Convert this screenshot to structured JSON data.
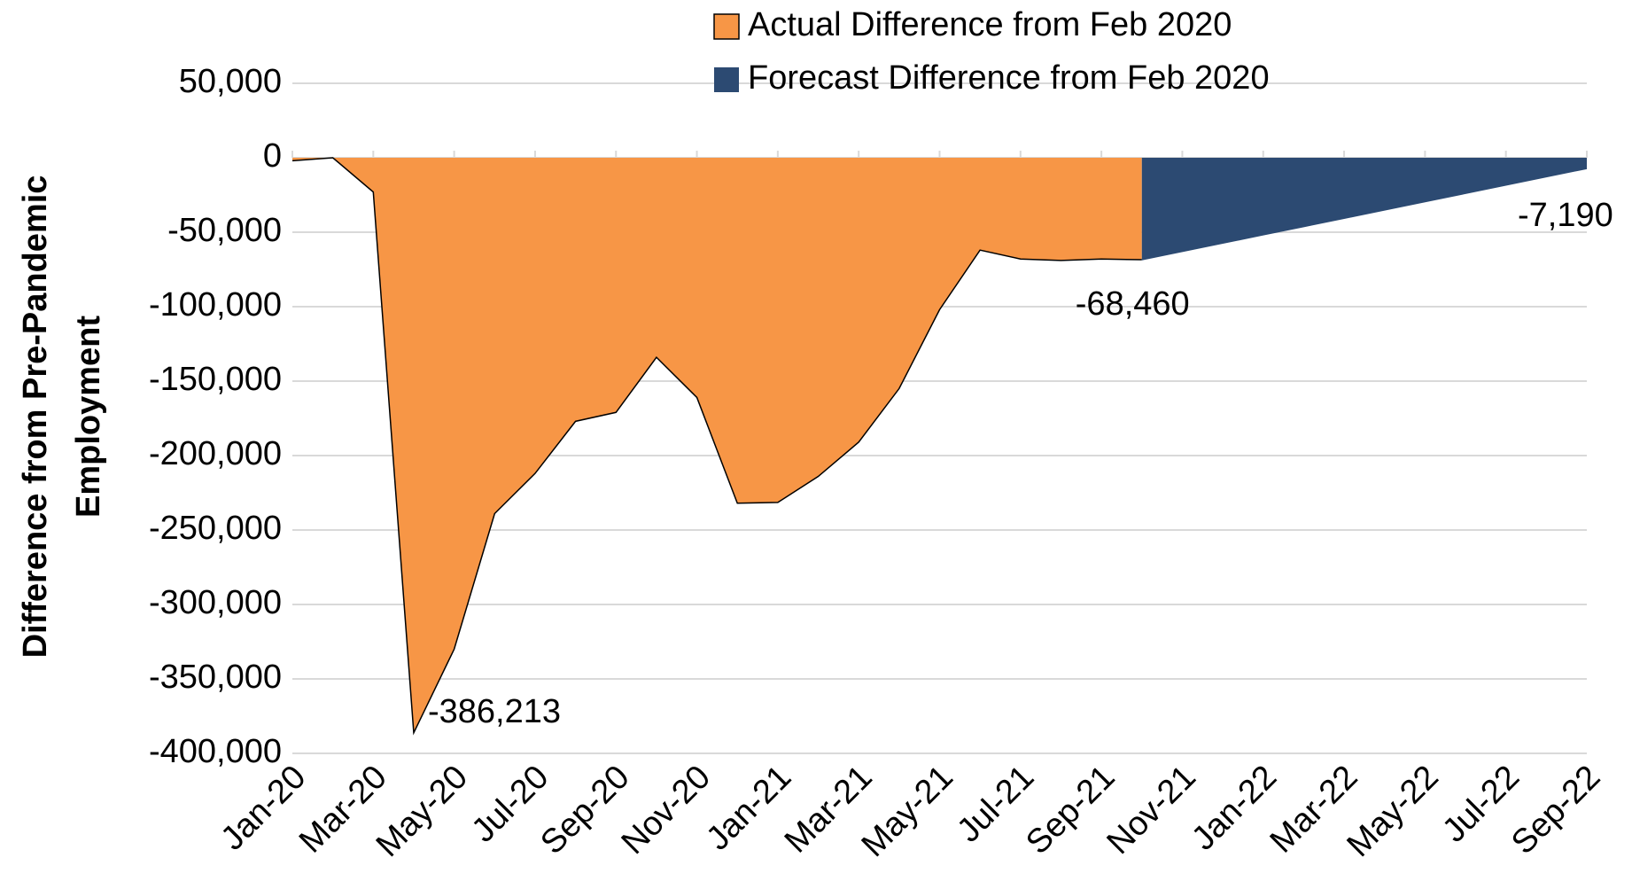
{
  "chart_data": {
    "type": "area",
    "y_label": [
      "Difference from Pre-Pandemic",
      "Employment"
    ],
    "categories": [
      "Jan-20",
      null,
      "Mar-20",
      null,
      "May-20",
      null,
      "Jul-20",
      null,
      "Sep-20",
      null,
      "Nov-20",
      null,
      "Jan-21",
      null,
      "Mar-21",
      null,
      "May-21",
      null,
      "Jul-21",
      null,
      "Sep-21",
      null,
      "Nov-21",
      null,
      "Jan-22",
      null,
      "Mar-22",
      null,
      "May-22",
      null,
      "Jul-22",
      null,
      "Sep-22"
    ],
    "series": [
      {
        "name": "Actual Difference from Feb 2020",
        "color": "#f79646",
        "values": [
          -2000,
          0,
          -23000,
          -386213,
          -330000,
          -239000,
          -212000,
          -177000,
          -171000,
          -134000,
          -161000,
          -232000,
          -231500,
          -214000,
          -191000,
          -155000,
          -102000,
          -62000,
          -68000,
          -69000,
          -68000,
          -68460,
          null,
          null,
          null,
          null,
          null,
          null,
          null,
          null,
          null,
          null,
          null
        ],
        "value_labels": [
          null,
          null,
          null,
          "-386,213",
          null,
          null,
          null,
          null,
          null,
          null,
          null,
          null,
          null,
          null,
          null,
          null,
          null,
          null,
          null,
          null,
          null,
          null,
          null,
          null,
          null,
          null,
          null,
          null,
          null,
          null,
          null,
          null,
          null
        ]
      },
      {
        "name": "Forecast Difference from Feb 2020",
        "color": "#2c4a72",
        "values": [
          null,
          null,
          null,
          null,
          null,
          null,
          null,
          null,
          null,
          null,
          null,
          null,
          null,
          null,
          null,
          null,
          null,
          null,
          null,
          null,
          null,
          -68460,
          -62890,
          -57320,
          -51750,
          -46180,
          -40610,
          -35040,
          -29470,
          -23900,
          -18330,
          -12760,
          -7190
        ],
        "value_labels": [
          null,
          null,
          null,
          null,
          null,
          null,
          null,
          null,
          null,
          null,
          null,
          null,
          null,
          null,
          null,
          null,
          null,
          null,
          null,
          null,
          null,
          "-68,460",
          null,
          null,
          null,
          null,
          null,
          null,
          null,
          null,
          null,
          null,
          "-7,190"
        ]
      }
    ],
    "ylim": [
      -400000,
      50000
    ],
    "yticks": [
      {
        "value": 50000,
        "label": "50,000"
      },
      0,
      {
        "value": -50000,
        "label": "-50,000"
      },
      {
        "value": -100000,
        "label": "-100,000"
      },
      {
        "value": -150000,
        "label": "-150,000"
      },
      {
        "value": -200000,
        "label": "-200,000"
      },
      {
        "value": -250000,
        "label": "-250,000"
      },
      {
        "value": -300000,
        "label": "-300,000"
      },
      {
        "value": -350000,
        "label": "-350,000"
      },
      {
        "value": -400000,
        "label": "-400,000"
      }
    ],
    "grid": true
  }
}
